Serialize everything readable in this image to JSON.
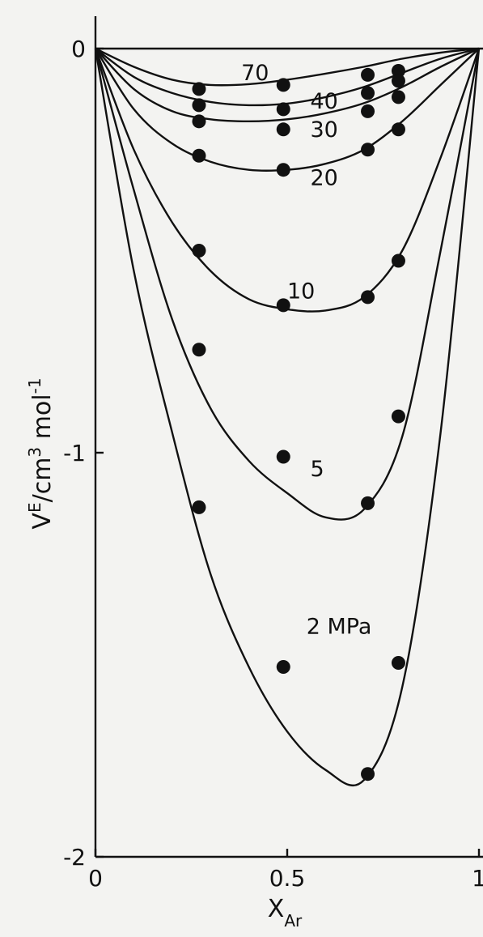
{
  "chart_data": {
    "type": "line",
    "title": "",
    "xlabel": {
      "main": "X",
      "sub": "Ar"
    },
    "ylabel": {
      "main": "V",
      "sup": "E",
      "unit_pre": "/cm",
      "unit_sup": "3",
      "unit_post": " mol",
      "unit_sup2": "-1"
    },
    "xlim": [
      0,
      1
    ],
    "ylim": [
      -2,
      0
    ],
    "x_ticks": [
      {
        "value": 0,
        "label": "0"
      },
      {
        "value": 0.5,
        "label": "0.5"
      },
      {
        "value": 1,
        "label": "1"
      }
    ],
    "y_ticks": [
      {
        "value": 0,
        "label": "0"
      },
      {
        "value": -1,
        "label": "-1"
      },
      {
        "value": -2,
        "label": "-2"
      }
    ],
    "grid": false,
    "series": [
      {
        "name": "70",
        "curve": [
          [
            0,
            0
          ],
          [
            0.1,
            -0.045
          ],
          [
            0.2,
            -0.077
          ],
          [
            0.3,
            -0.09
          ],
          [
            0.4,
            -0.088
          ],
          [
            0.5,
            -0.077
          ],
          [
            0.6,
            -0.062
          ],
          [
            0.7,
            -0.045
          ],
          [
            0.8,
            -0.025
          ],
          [
            0.9,
            -0.01
          ],
          [
            1,
            0
          ]
        ],
        "points": [
          [
            0.27,
            -0.1
          ],
          [
            0.49,
            -0.09
          ],
          [
            0.71,
            -0.065
          ],
          [
            0.79,
            -0.055
          ]
        ]
      },
      {
        "name": "40",
        "curve": [
          [
            0,
            0
          ],
          [
            0.1,
            -0.07
          ],
          [
            0.2,
            -0.11
          ],
          [
            0.3,
            -0.132
          ],
          [
            0.4,
            -0.14
          ],
          [
            0.5,
            -0.136
          ],
          [
            0.6,
            -0.12
          ],
          [
            0.7,
            -0.095
          ],
          [
            0.8,
            -0.06
          ],
          [
            0.9,
            -0.025
          ],
          [
            1,
            0
          ]
        ],
        "points": [
          [
            0.27,
            -0.14
          ],
          [
            0.49,
            -0.15
          ],
          [
            0.71,
            -0.11
          ],
          [
            0.79,
            -0.08
          ]
        ]
      },
      {
        "name": "30",
        "curve": [
          [
            0,
            0
          ],
          [
            0.1,
            -0.1
          ],
          [
            0.2,
            -0.155
          ],
          [
            0.3,
            -0.175
          ],
          [
            0.4,
            -0.18
          ],
          [
            0.5,
            -0.175
          ],
          [
            0.6,
            -0.16
          ],
          [
            0.7,
            -0.135
          ],
          [
            0.8,
            -0.095
          ],
          [
            0.9,
            -0.045
          ],
          [
            1,
            0
          ]
        ],
        "points": [
          [
            0.27,
            -0.18
          ],
          [
            0.49,
            -0.2
          ],
          [
            0.71,
            -0.155
          ],
          [
            0.79,
            -0.12
          ]
        ]
      },
      {
        "name": "20",
        "curve": [
          [
            0,
            0
          ],
          [
            0.1,
            -0.15
          ],
          [
            0.2,
            -0.235
          ],
          [
            0.3,
            -0.28
          ],
          [
            0.4,
            -0.3
          ],
          [
            0.5,
            -0.3
          ],
          [
            0.6,
            -0.285
          ],
          [
            0.7,
            -0.25
          ],
          [
            0.8,
            -0.18
          ],
          [
            0.9,
            -0.09
          ],
          [
            1,
            0
          ]
        ],
        "points": [
          [
            0.27,
            -0.265
          ],
          [
            0.49,
            -0.3
          ],
          [
            0.71,
            -0.25
          ],
          [
            0.79,
            -0.2
          ]
        ]
      },
      {
        "name": "10",
        "curve": [
          [
            0,
            0
          ],
          [
            0.1,
            -0.25
          ],
          [
            0.2,
            -0.43
          ],
          [
            0.3,
            -0.55
          ],
          [
            0.4,
            -0.62
          ],
          [
            0.5,
            -0.645
          ],
          [
            0.6,
            -0.648
          ],
          [
            0.7,
            -0.615
          ],
          [
            0.8,
            -0.5
          ],
          [
            0.9,
            -0.27
          ],
          [
            1,
            0
          ]
        ],
        "points": [
          [
            0.27,
            -0.5
          ],
          [
            0.49,
            -0.635
          ],
          [
            0.71,
            -0.615
          ],
          [
            0.79,
            -0.525
          ]
        ]
      },
      {
        "name": "5",
        "curve": [
          [
            0,
            0
          ],
          [
            0.1,
            -0.35
          ],
          [
            0.2,
            -0.67
          ],
          [
            0.3,
            -0.89
          ],
          [
            0.4,
            -1.02
          ],
          [
            0.5,
            -1.1
          ],
          [
            0.6,
            -1.16
          ],
          [
            0.7,
            -1.14
          ],
          [
            0.8,
            -0.96
          ],
          [
            0.9,
            -0.5
          ],
          [
            1,
            0
          ]
        ],
        "points": [
          [
            0.27,
            -0.745
          ],
          [
            0.49,
            -1.01
          ],
          [
            0.71,
            -1.125
          ],
          [
            0.79,
            -0.91
          ]
        ]
      },
      {
        "name": "2 MPa",
        "curve": [
          [
            0,
            0
          ],
          [
            0.1,
            -0.55
          ],
          [
            0.2,
            -0.95
          ],
          [
            0.3,
            -1.3
          ],
          [
            0.4,
            -1.53
          ],
          [
            0.5,
            -1.69
          ],
          [
            0.6,
            -1.785
          ],
          [
            0.7,
            -1.81
          ],
          [
            0.8,
            -1.58
          ],
          [
            0.9,
            -0.95
          ],
          [
            1,
            0
          ]
        ],
        "points": [
          [
            0.27,
            -1.135
          ],
          [
            0.49,
            -1.53
          ],
          [
            0.71,
            -1.795
          ],
          [
            0.79,
            -1.52
          ]
        ]
      }
    ],
    "curve_labels": [
      {
        "series": "70",
        "x": 0.38,
        "y": -0.06
      },
      {
        "series": "40",
        "x": 0.56,
        "y": -0.13
      },
      {
        "series": "30",
        "x": 0.56,
        "y": -0.2
      },
      {
        "series": "20",
        "x": 0.56,
        "y": -0.32
      },
      {
        "series": "10",
        "x": 0.5,
        "y": -0.6
      },
      {
        "series": "5",
        "x": 0.56,
        "y": -1.04
      },
      {
        "series": "2 MPa",
        "x": 0.55,
        "y": -1.43
      }
    ]
  }
}
